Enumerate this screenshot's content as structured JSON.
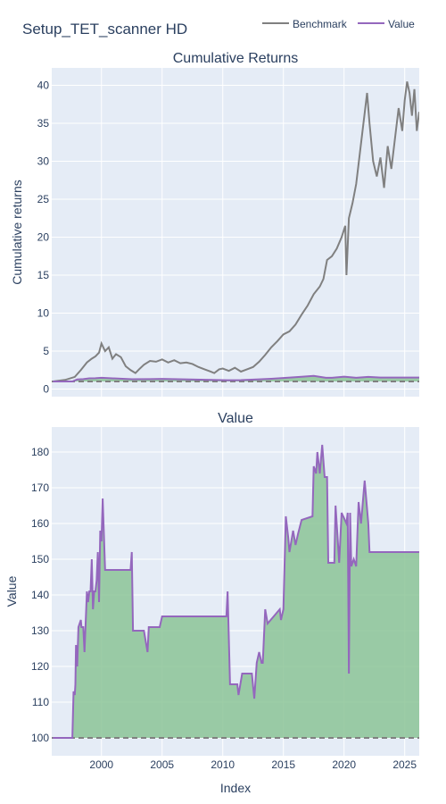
{
  "page_title": "Setup_TET_scanner HD",
  "colors": {
    "benchmark": "#808080",
    "value": "#9467bd",
    "fill": "#8cc497",
    "plot_bg": "#e5ecf6",
    "baseline": "#808080"
  },
  "legend": {
    "benchmark": "Benchmark",
    "value": "Value"
  },
  "chart_data": [
    {
      "type": "line",
      "title": "Cumulative Returns",
      "ylabel": "Cumulative returns",
      "xlabel": "",
      "xlim": [
        1995.9,
        2026.2
      ],
      "ylim": [
        -1,
        42.3
      ],
      "yticks": [
        0,
        5,
        10,
        15,
        20,
        25,
        30,
        35,
        40
      ],
      "baseline": 1,
      "series": [
        {
          "name": "Benchmark",
          "x": [
            1996.0,
            1997.0,
            1997.8,
            1998.3,
            1998.8,
            1999.2,
            1999.5,
            1999.8,
            2000.0,
            2000.3,
            2000.6,
            2000.9,
            2001.2,
            2001.6,
            2002.0,
            2002.4,
            2002.8,
            2003.1,
            2003.5,
            2004.0,
            2004.5,
            2005.0,
            2005.5,
            2006.0,
            2006.5,
            2007.0,
            2007.5,
            2008.0,
            2008.5,
            2009.0,
            2009.3,
            2009.7,
            2010.0,
            2010.5,
            2011.0,
            2011.5,
            2012.0,
            2012.5,
            2013.0,
            2013.5,
            2014.0,
            2014.5,
            2015.0,
            2015.5,
            2016.0,
            2016.5,
            2017.0,
            2017.5,
            2018.0,
            2018.3,
            2018.6,
            2019.0,
            2019.4,
            2019.8,
            2020.1,
            2020.2,
            2020.4,
            2020.7,
            2021.0,
            2021.3,
            2021.6,
            2021.9,
            2022.1,
            2022.4,
            2022.7,
            2023.0,
            2023.3,
            2023.6,
            2023.9,
            2024.2,
            2024.5,
            2024.8,
            2025.0,
            2025.2,
            2025.4,
            2025.6,
            2025.8,
            2026.0,
            2026.2
          ],
          "values": [
            1.0,
            1.2,
            1.6,
            2.5,
            3.5,
            4.0,
            4.3,
            4.8,
            6.0,
            5.0,
            5.5,
            4.0,
            4.6,
            4.2,
            3.0,
            2.5,
            2.1,
            2.6,
            3.2,
            3.7,
            3.6,
            3.9,
            3.5,
            3.8,
            3.4,
            3.5,
            3.3,
            2.9,
            2.6,
            2.3,
            2.1,
            2.6,
            2.7,
            2.4,
            2.8,
            2.3,
            2.6,
            2.9,
            3.6,
            4.5,
            5.5,
            6.3,
            7.2,
            7.6,
            8.5,
            9.8,
            11.0,
            12.5,
            13.5,
            14.5,
            17.0,
            17.5,
            18.5,
            20.0,
            21.5,
            15.0,
            22.5,
            24.5,
            27.0,
            31.0,
            35.0,
            39.0,
            35.0,
            30.0,
            28.0,
            30.5,
            26.5,
            32.0,
            29.0,
            33.0,
            37.0,
            34.0,
            38.0,
            40.5,
            39.0,
            36.0,
            39.5,
            34.0,
            36.5
          ]
        },
        {
          "name": "Value",
          "x": [
            1996.0,
            1997.6,
            1998.0,
            1998.5,
            1999.0,
            1999.5,
            2000.0,
            2002.5,
            2004.0,
            2005.0,
            2010.5,
            2011.5,
            2013.0,
            2014.0,
            2015.0,
            2016.5,
            2017.5,
            2018.5,
            2019.0,
            2020.0,
            2021.0,
            2022.0,
            2023.0,
            2026.2
          ],
          "values": [
            1.0,
            1.0,
            1.26,
            1.31,
            1.41,
            1.42,
            1.48,
            1.3,
            1.31,
            1.34,
            1.16,
            1.18,
            1.28,
            1.36,
            1.45,
            1.62,
            1.74,
            1.49,
            1.48,
            1.63,
            1.48,
            1.61,
            1.52,
            1.52
          ]
        }
      ]
    },
    {
      "type": "area",
      "title": "Value",
      "ylabel": "Value",
      "xlabel": "Index",
      "xlim": [
        1995.9,
        2026.2
      ],
      "ylim": [
        95,
        187
      ],
      "yticks": [
        100,
        110,
        120,
        130,
        140,
        150,
        160,
        170,
        180
      ],
      "xticks": [
        2000,
        2005,
        2010,
        2015,
        2020,
        2025
      ],
      "baseline": 100,
      "series": [
        {
          "name": "Value",
          "x": [
            1996.0,
            1997.6,
            1997.7,
            1997.8,
            1997.85,
            1997.9,
            1998.0,
            1998.1,
            1998.3,
            1998.35,
            1998.5,
            1998.6,
            1998.8,
            1998.9,
            1999.0,
            1999.1,
            1999.2,
            1999.3,
            1999.4,
            1999.5,
            1999.6,
            1999.7,
            1999.8,
            1999.9,
            2000.0,
            2000.1,
            2000.3,
            2002.4,
            2002.5,
            2002.6,
            2003.5,
            2003.8,
            2003.9,
            2004.8,
            2005.0,
            2010.3,
            2010.4,
            2010.6,
            2011.2,
            2011.3,
            2011.6,
            2012.4,
            2012.6,
            2012.8,
            2013.0,
            2013.2,
            2013.3,
            2013.5,
            2013.7,
            2014.7,
            2014.8,
            2015.0,
            2015.2,
            2015.4,
            2015.5,
            2015.6,
            2015.8,
            2016.0,
            2016.2,
            2016.5,
            2017.4,
            2017.5,
            2017.7,
            2017.8,
            2018.0,
            2018.2,
            2018.4,
            2018.6,
            2018.7,
            2019.2,
            2019.3,
            2019.6,
            2019.8,
            2020.2,
            2020.3,
            2020.4,
            2020.5,
            2020.6,
            2020.8,
            2021.0,
            2021.2,
            2021.4,
            2021.7,
            2022.0,
            2022.1,
            2024.0,
            2026.2
          ],
          "values": [
            100,
            100,
            113,
            112,
            115,
            126,
            120,
            131,
            133,
            131,
            131,
            124,
            141,
            138,
            141,
            141,
            150,
            136,
            141,
            141,
            144,
            152,
            138,
            158,
            155,
            167,
            147,
            147,
            152,
            130,
            130,
            124,
            131,
            131,
            134,
            134,
            141,
            115,
            115,
            112,
            118,
            118,
            111,
            121,
            124,
            121,
            121,
            136,
            132,
            136,
            133,
            136,
            162,
            156,
            152,
            154,
            158,
            154,
            157,
            161,
            162,
            176,
            174,
            180,
            174,
            182,
            173,
            173,
            149,
            149,
            165,
            149,
            163,
            160,
            163,
            118,
            163,
            148,
            150,
            148,
            166,
            160,
            172,
            160,
            152,
            152,
            152
          ]
        }
      ]
    }
  ]
}
